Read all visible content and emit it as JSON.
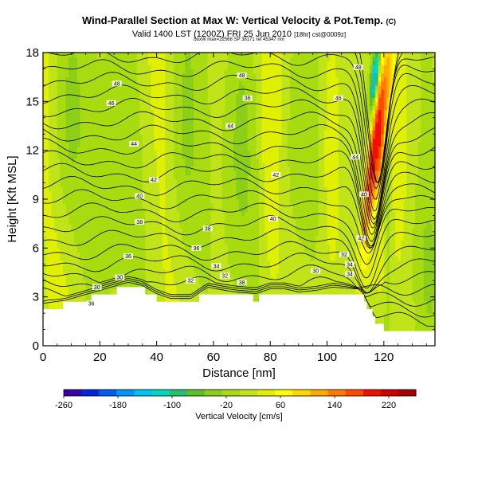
{
  "title": "Wind-Parallel Section at Max W: Vertical Velocity & Pot.Temp.",
  "copyright": "(C)",
  "valid_line": "Valid 1400 LST (1200Z) FRI 25 Jun 2010",
  "valid_suffix": "[18hr] cst@0009z]",
  "small_note": "boxW max=22568 SP 38171 ref 45347 nm",
  "chart_data": {
    "type": "heatmap",
    "title": "Wind-Parallel Section at Max W: Vertical Velocity & Pot.Temp.",
    "xlabel": "Distance [nm]",
    "ylabel": "Height [Kft MSL]",
    "xlim": [
      0,
      138
    ],
    "ylim": [
      0,
      18
    ],
    "x_ticks": [
      "0",
      "20",
      "40",
      "60",
      "80",
      "100",
      "120"
    ],
    "y_ticks": [
      "0",
      "3",
      "6",
      "9",
      "12",
      "15",
      "18"
    ],
    "colorbar": {
      "label": "Vertical Velocity [cm/s]",
      "min": -260,
      "max": 260,
      "ticks": [
        "-260",
        "-180",
        "-100",
        "-20",
        "60",
        "140",
        "220"
      ],
      "colors": [
        "#3a00a8",
        "#0026d8",
        "#005cf0",
        "#0094ff",
        "#00c2f0",
        "#00d8c0",
        "#28c070",
        "#60bd2c",
        "#8ccf18",
        "#a8dc10",
        "#c0e418",
        "#e0f000",
        "#ffff00",
        "#ffd800",
        "#ffaa00",
        "#ff7a00",
        "#ff4a00",
        "#f01000",
        "#d00000",
        "#a80000"
      ]
    },
    "contour_labels": [
      {
        "x": 17,
        "y": 2.6,
        "text": "36"
      },
      {
        "x": 19,
        "y": 3.6,
        "text": "30"
      },
      {
        "x": 27,
        "y": 4.2,
        "text": "30"
      },
      {
        "x": 30,
        "y": 5.5,
        "text": "36"
      },
      {
        "x": 34,
        "y": 7.6,
        "text": "38"
      },
      {
        "x": 34,
        "y": 9.2,
        "text": "40"
      },
      {
        "x": 39,
        "y": 10.2,
        "text": "42"
      },
      {
        "x": 32,
        "y": 12.4,
        "text": "44"
      },
      {
        "x": 24,
        "y": 14.9,
        "text": "46"
      },
      {
        "x": 26,
        "y": 16.1,
        "text": "48"
      },
      {
        "x": 52,
        "y": 4.0,
        "text": "32"
      },
      {
        "x": 54,
        "y": 6.0,
        "text": "36"
      },
      {
        "x": 58,
        "y": 7.2,
        "text": "38"
      },
      {
        "x": 61,
        "y": 4.9,
        "text": "34"
      },
      {
        "x": 64,
        "y": 4.3,
        "text": "32"
      },
      {
        "x": 70,
        "y": 3.9,
        "text": "38"
      },
      {
        "x": 66,
        "y": 13.5,
        "text": "44"
      },
      {
        "x": 72,
        "y": 15.2,
        "text": "36"
      },
      {
        "x": 70,
        "y": 16.6,
        "text": "48"
      },
      {
        "x": 81,
        "y": 7.8,
        "text": "40"
      },
      {
        "x": 82,
        "y": 10.5,
        "text": "42"
      },
      {
        "x": 96,
        "y": 4.6,
        "text": "30"
      },
      {
        "x": 106,
        "y": 5.6,
        "text": "32"
      },
      {
        "x": 108,
        "y": 5.0,
        "text": "34"
      },
      {
        "x": 108,
        "y": 4.4,
        "text": "34"
      },
      {
        "x": 104,
        "y": 15.2,
        "text": "46"
      },
      {
        "x": 110,
        "y": 11.6,
        "text": "44"
      },
      {
        "x": 112,
        "y": 6.6,
        "text": "42"
      },
      {
        "x": 113,
        "y": 9.3,
        "text": "40"
      },
      {
        "x": 111,
        "y": 17.1,
        "text": "48"
      }
    ]
  }
}
